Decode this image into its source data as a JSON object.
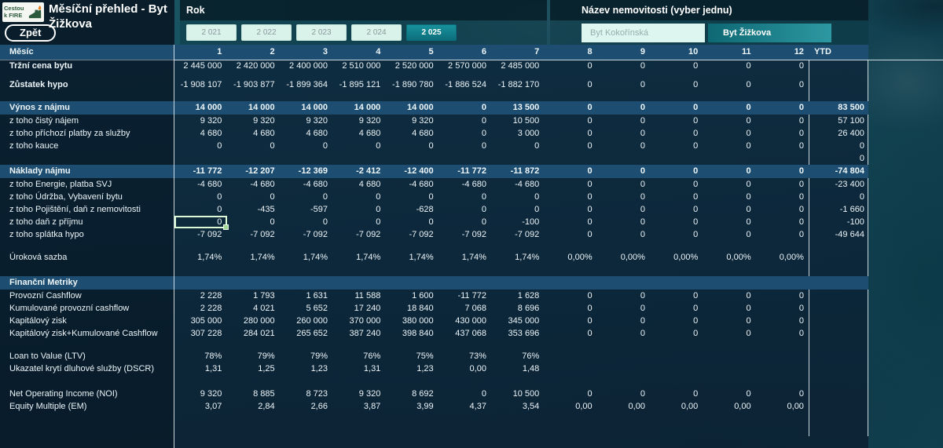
{
  "header": {
    "logo": {
      "line1": "Cestou",
      "line2": "k FIRE"
    },
    "title": "Měsíční přehled - Byt Žižkova",
    "back_button": "Zpět",
    "year_filter": {
      "label": "Rok",
      "options": [
        {
          "label": "2 021",
          "selected": false
        },
        {
          "label": "2 022",
          "selected": false
        },
        {
          "label": "2 023",
          "selected": false
        },
        {
          "label": "2 024",
          "selected": false
        },
        {
          "label": "2 025",
          "selected": true
        }
      ]
    },
    "property_filter": {
      "label": "Název nemovitosti (vyber jednu)",
      "options": [
        {
          "label": "Byt Kokořínská",
          "selected": false
        },
        {
          "label": "Byt Žižkova",
          "selected": true
        }
      ]
    }
  },
  "table": {
    "month_header": {
      "label": "Měsíc",
      "columns": [
        "1",
        "2",
        "3",
        "4",
        "5",
        "6",
        "7",
        "8",
        "9",
        "10",
        "11",
        "12"
      ],
      "ytd_label": "YTD"
    },
    "rows": [
      {
        "label": "Tržní cena bytu",
        "type": "data",
        "label_bold": true,
        "values": [
          "2 445 000",
          "2 420 000",
          "2 400 000",
          "2 510 000",
          "2 520 000",
          "2 570 000",
          "2 485 000",
          "0",
          "0",
          "0",
          "0",
          "0"
        ],
        "ytd": ""
      },
      {
        "type": "spacer",
        "size": "s"
      },
      {
        "label": "Zůstatek hypo",
        "type": "data",
        "label_bold": true,
        "values": [
          "-1 908 107",
          "-1 903 877",
          "-1 899 364",
          "-1 895 121",
          "-1 890 780",
          "-1 886 524",
          "-1 882 170",
          "0",
          "0",
          "0",
          "0",
          "0"
        ],
        "ytd": ""
      },
      {
        "type": "spacer",
        "size": "m"
      },
      {
        "label": "Výnos z nájmu",
        "type": "section",
        "values": [
          "14 000",
          "14 000",
          "14 000",
          "14 000",
          "14 000",
          "0",
          "13 500",
          "0",
          "0",
          "0",
          "0",
          "0"
        ],
        "ytd": "83 500"
      },
      {
        "label": "z toho čistý nájem",
        "type": "data",
        "values": [
          "9 320",
          "9 320",
          "9 320",
          "9 320",
          "9 320",
          "0",
          "10 500",
          "0",
          "0",
          "0",
          "0",
          "0"
        ],
        "ytd": "57 100"
      },
      {
        "label": "z toho příchozí platby za služby",
        "type": "data",
        "values": [
          "4 680",
          "4 680",
          "4 680",
          "4 680",
          "4 680",
          "0",
          "3 000",
          "0",
          "0",
          "0",
          "0",
          "0"
        ],
        "ytd": "26 400"
      },
      {
        "label": "z toho kauce",
        "type": "data",
        "values": [
          "0",
          "0",
          "0",
          "0",
          "0",
          "0",
          "0",
          "0",
          "0",
          "0",
          "0",
          "0"
        ],
        "ytd": "0"
      },
      {
        "label": "",
        "type": "data",
        "values": [
          "",
          "",
          "",
          "",
          "",
          "",
          "",
          "",
          "",
          "",
          "",
          ""
        ],
        "ytd": "0"
      },
      {
        "label": "Náklady nájmu",
        "type": "section",
        "values": [
          "-11 772",
          "-12 207",
          "-12 369",
          "-2 412",
          "-12 400",
          "-11 772",
          "-11 872",
          "0",
          "0",
          "0",
          "0",
          "0"
        ],
        "ytd": "-74 804"
      },
      {
        "label": "z toho Energie, platba SVJ",
        "type": "data",
        "values": [
          "-4 680",
          "-4 680",
          "-4 680",
          "4 680",
          "-4 680",
          "-4 680",
          "-4 680",
          "0",
          "0",
          "0",
          "0",
          "0"
        ],
        "ytd": "-23 400"
      },
      {
        "label": "z toho Údržba, Vybavení bytu",
        "type": "data",
        "values": [
          "0",
          "0",
          "0",
          "0",
          "0",
          "0",
          "0",
          "0",
          "0",
          "0",
          "0",
          "0"
        ],
        "ytd": "0"
      },
      {
        "label": "z toho Pojištění, daň z nemovitosti",
        "type": "data",
        "values": [
          "0",
          "-435",
          "-597",
          "0",
          "-628",
          "0",
          "0",
          "0",
          "0",
          "0",
          "0",
          "0"
        ],
        "ytd": "-1 660"
      },
      {
        "label": "z toho daň z příjmu",
        "type": "data",
        "values": [
          "0",
          "0",
          "0",
          "0",
          "0",
          "0",
          "-100",
          "0",
          "0",
          "0",
          "0",
          "0"
        ],
        "ytd": "-100",
        "selected": 0
      },
      {
        "label": "z toho splátka hypo",
        "type": "data",
        "values": [
          "-7 092",
          "-7 092",
          "-7 092",
          "-7 092",
          "-7 092",
          "-7 092",
          "-7 092",
          "0",
          "0",
          "0",
          "0",
          "0"
        ],
        "ytd": "-49 644"
      },
      {
        "type": "spacer",
        "size": "m"
      },
      {
        "label": "Úroková sazba",
        "type": "data",
        "values": [
          "1,74%",
          "1,74%",
          "1,74%",
          "1,74%",
          "1,74%",
          "1,74%",
          "1,74%",
          "0,00%",
          "0,00%",
          "0,00%",
          "0,00%",
          "0,00%"
        ],
        "ytd": ""
      },
      {
        "type": "spacer",
        "size": "l"
      },
      {
        "label": "Finanční Metriky",
        "type": "section",
        "values": [
          "",
          "",
          "",
          "",
          "",
          "",
          "",
          "",
          "",
          "",
          "",
          ""
        ],
        "ytd": ""
      },
      {
        "label": "Provozní Cashflow",
        "type": "data",
        "values": [
          "2 228",
          "1 793",
          "1 631",
          "11 588",
          "1 600",
          "-11 772",
          "1 628",
          "0",
          "0",
          "0",
          "0",
          "0"
        ],
        "ytd": ""
      },
      {
        "label": "Kumulované provozní cashflow",
        "type": "data",
        "values": [
          "2 228",
          "4 021",
          "5 652",
          "17 240",
          "18 840",
          "7 068",
          "8 696",
          "0",
          "0",
          "0",
          "0",
          "0"
        ],
        "ytd": ""
      },
      {
        "label": "Kapitálový zisk",
        "type": "data",
        "values": [
          "305 000",
          "280 000",
          "260 000",
          "370 000",
          "380 000",
          "430 000",
          "345 000",
          "0",
          "0",
          "0",
          "0",
          "0"
        ],
        "ytd": ""
      },
      {
        "label": "Kapitálový zisk+Kumulované Cashflow",
        "type": "data",
        "values": [
          "307 228",
          "284 021",
          "265 652",
          "387 240",
          "398 840",
          "437 068",
          "353 696",
          "0",
          "0",
          "0",
          "0",
          "0"
        ],
        "ytd": ""
      },
      {
        "type": "spacer",
        "size": "m"
      },
      {
        "label": "Loan to Value (LTV)",
        "type": "data",
        "values": [
          "78%",
          "79%",
          "79%",
          "76%",
          "75%",
          "73%",
          "76%",
          "",
          "",
          "",
          "",
          ""
        ],
        "ytd": ""
      },
      {
        "label": "Ukazatel krytí dluhové služby (DSCR)",
        "type": "data",
        "values": [
          "1,31",
          "1,25",
          "1,23",
          "1,31",
          "1,23",
          "0,00",
          "1,48",
          "",
          "",
          "",
          "",
          ""
        ],
        "ytd": ""
      },
      {
        "type": "spacer",
        "size": "l"
      },
      {
        "label": "Net Operating Income (NOI)",
        "type": "data",
        "values": [
          "9 320",
          "8 885",
          "8 723",
          "9 320",
          "8 692",
          "0",
          "10 500",
          "0",
          "0",
          "0",
          "0",
          "0"
        ],
        "ytd": ""
      },
      {
        "label": "Equity Multiple (EM)",
        "type": "data",
        "values": [
          "3,07",
          "2,84",
          "2,66",
          "3,87",
          "3,99",
          "4,37",
          "3,54",
          "0,00",
          "0,00",
          "0,00",
          "0,00",
          "0,00"
        ],
        "ytd": ""
      }
    ]
  },
  "colors": {
    "background_teal": "#175160",
    "panel_navy": "#0c2233",
    "section_row_blue": "#1d4e71",
    "selected_filter_teal": "#0d6e7b",
    "unselected_filter_mint": "#d9f2ea",
    "selection_border_green": "#dcf8d4",
    "logo_green": "#2c5a3c",
    "logo_flame_orange": "#e87f1d",
    "text_white": "#edf5f8"
  }
}
